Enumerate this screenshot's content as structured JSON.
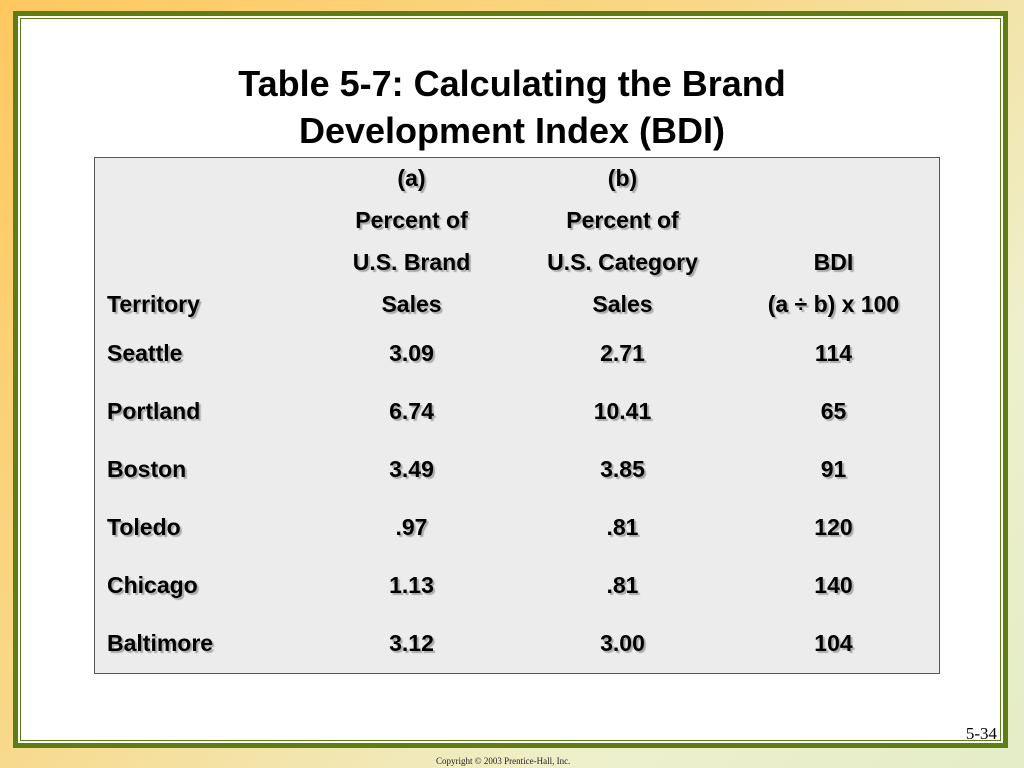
{
  "title": {
    "line1": "Table 5-7: Calculating the Brand",
    "line2": "Development Index (BDI)"
  },
  "table": {
    "headers": [
      [
        "",
        "(a)",
        "(b)",
        ""
      ],
      [
        "",
        "Percent of",
        "Percent of",
        ""
      ],
      [
        "",
        "U.S. Brand",
        "U.S. Category",
        "BDI"
      ],
      [
        "Territory",
        "Sales",
        "Sales",
        "(a ÷ b) x 100"
      ]
    ],
    "rows": [
      [
        "Seattle",
        "3.09",
        "2.71",
        "114"
      ],
      [
        "Portland",
        "6.74",
        "10.41",
        "65"
      ],
      [
        "Boston",
        "3.49",
        "3.85",
        "91"
      ],
      [
        "Toledo",
        ".97",
        ".81",
        "120"
      ],
      [
        "Chicago",
        "1.13",
        ".81",
        "140"
      ],
      [
        "Baltimore",
        "3.12",
        "3.00",
        "104"
      ]
    ]
  },
  "page_number": "5-34",
  "copyright": "Copyright © 2003 Prentice-Hall, Inc.",
  "colors": {
    "frame": "#5e7d14",
    "background": "#ffc860",
    "table_bg": "#ececec"
  }
}
